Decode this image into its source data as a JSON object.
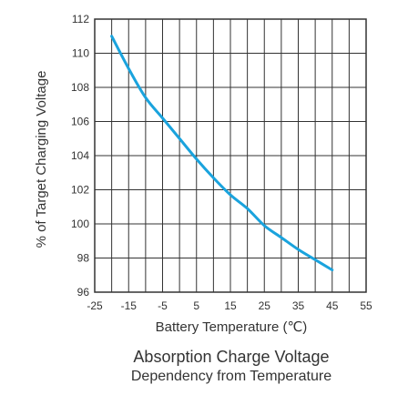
{
  "chart_data": {
    "type": "line",
    "title": "Absorption Charge Voltage",
    "subtitle": "Dependency from Temperature",
    "xlabel": "Battery Temperature (℃)",
    "ylabel": "% of Target Charging Voltage",
    "xlim": [
      -25,
      55
    ],
    "ylim": [
      96,
      112
    ],
    "x_ticks": [
      -25,
      -15,
      -5,
      5,
      15,
      25,
      35,
      45,
      55
    ],
    "x_tick_labels": [
      "-25",
      "-15",
      "-5",
      "5",
      "15",
      "25",
      "35",
      "45",
      "55"
    ],
    "y_ticks": [
      96,
      98,
      100,
      102,
      104,
      106,
      108,
      110,
      112
    ],
    "y_tick_labels": [
      "96",
      "98",
      "100",
      "102",
      "104",
      "106",
      "108",
      "110",
      "112"
    ],
    "x_gridlines": [
      -25,
      -20,
      -15,
      -10,
      -5,
      0,
      5,
      10,
      15,
      20,
      25,
      30,
      35,
      40,
      45,
      50,
      55
    ],
    "y_gridlines": [
      96,
      98,
      100,
      102,
      104,
      106,
      108,
      110,
      112
    ],
    "grid": true,
    "series": [
      {
        "color": "#1aa3dd",
        "x": [
          -20,
          -15,
          -10,
          -5,
          0,
          5,
          10,
          15,
          20,
          25,
          30,
          35,
          40,
          45
        ],
        "y": [
          111,
          109.1,
          107.4,
          106.2,
          105.0,
          103.8,
          102.7,
          101.7,
          100.9,
          99.9,
          99.2,
          98.5,
          97.9,
          97.3
        ]
      }
    ]
  }
}
